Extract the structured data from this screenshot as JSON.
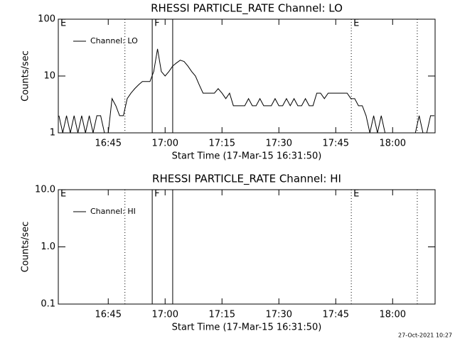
{
  "chart_data": [
    {
      "type": "line",
      "title": "RHESSI PARTICLE_RATE Channel: LO",
      "xlabel": "Start Time (17-Mar-15 16:31:50)",
      "ylabel": "Counts/sec",
      "log_y": true,
      "legend": "upper left",
      "color": "#000000",
      "xlim": [
        991.83,
        1091.2
      ],
      "xticks": [
        {
          "value": 1005,
          "label": "16:45"
        },
        {
          "value": 1020,
          "label": "17:00"
        },
        {
          "value": 1035,
          "label": "17:15"
        },
        {
          "value": 1050,
          "label": "17:30"
        },
        {
          "value": 1065,
          "label": "17:45"
        },
        {
          "value": 1080,
          "label": "18:00"
        }
      ],
      "ylim": [
        1,
        100
      ],
      "yticks": [
        1,
        10,
        100
      ],
      "markers": [
        {
          "x": 991.83,
          "style": "dotted",
          "label": "E"
        },
        {
          "x": 1009.4,
          "style": "dotted"
        },
        {
          "x": 1016.6,
          "style": "solid",
          "label": "F"
        },
        {
          "x": 1022.0,
          "style": "solid"
        },
        {
          "x": 1069.1,
          "style": "dotted",
          "label": "E"
        },
        {
          "x": 1086.5,
          "style": "dotted"
        }
      ],
      "x": [
        992,
        993,
        994,
        995,
        996,
        997,
        998,
        999,
        1000,
        1001,
        1002,
        1003,
        1004,
        1005,
        1006,
        1007,
        1008,
        1009,
        1010,
        1011,
        1012,
        1013,
        1014,
        1015,
        1016,
        1017,
        1018,
        1019,
        1020,
        1021,
        1022,
        1023,
        1024,
        1025,
        1026,
        1027,
        1028,
        1029,
        1030,
        1031,
        1032,
        1033,
        1034,
        1035,
        1036,
        1037,
        1038,
        1039,
        1040,
        1041,
        1042,
        1043,
        1044,
        1045,
        1046,
        1047,
        1048,
        1049,
        1050,
        1051,
        1052,
        1053,
        1054,
        1055,
        1056,
        1057,
        1058,
        1059,
        1060,
        1061,
        1062,
        1063,
        1064,
        1065,
        1066,
        1067,
        1068,
        1069,
        1070,
        1071,
        1072,
        1073,
        1074,
        1075,
        1076,
        1077,
        1078,
        1079,
        1080,
        1081,
        1082,
        1083,
        1084,
        1085,
        1086,
        1087,
        1088,
        1089,
        1090,
        1091
      ],
      "series": [
        {
          "name": "Channel: LO",
          "values": [
            2,
            1,
            2,
            1,
            2,
            1,
            2,
            1,
            2,
            1,
            2,
            2,
            1,
            1,
            4,
            3,
            2,
            2,
            4,
            5,
            6,
            7,
            8,
            8,
            8,
            12,
            30,
            12,
            10,
            12,
            15,
            17,
            19,
            18,
            15,
            12,
            10,
            7,
            5,
            5,
            5,
            5,
            6,
            5,
            4,
            5,
            3,
            3,
            3,
            3,
            4,
            3,
            3,
            4,
            3,
            3,
            3,
            4,
            3,
            3,
            4,
            3,
            4,
            3,
            3,
            4,
            3,
            3,
            5,
            5,
            4,
            5,
            5,
            5,
            5,
            5,
            5,
            4,
            4,
            3,
            3,
            2,
            1,
            2,
            1,
            2,
            1,
            1,
            1,
            1,
            1,
            1,
            1,
            1,
            1,
            2,
            1,
            1,
            2,
            2
          ]
        }
      ]
    },
    {
      "type": "line",
      "title": "RHESSI PARTICLE_RATE Channel: HI",
      "xlabel": "Start Time (17-Mar-15 16:31:50)",
      "ylabel": "Counts/sec",
      "log_y": true,
      "legend": "upper left",
      "color": "#000000",
      "xlim": [
        991.83,
        1091.2
      ],
      "xticks": [
        {
          "value": 1005,
          "label": "16:45"
        },
        {
          "value": 1020,
          "label": "17:00"
        },
        {
          "value": 1035,
          "label": "17:15"
        },
        {
          "value": 1050,
          "label": "17:30"
        },
        {
          "value": 1065,
          "label": "17:45"
        },
        {
          "value": 1080,
          "label": "18:00"
        }
      ],
      "ylim": [
        0.1,
        10
      ],
      "yticks": [
        {
          "value": 0.1,
          "label": "0.1"
        },
        {
          "value": 1,
          "label": "1.0"
        },
        {
          "value": 10,
          "label": "10.0"
        }
      ],
      "markers": [
        {
          "x": 991.83,
          "style": "dotted",
          "label": "E"
        },
        {
          "x": 1009.4,
          "style": "dotted"
        },
        {
          "x": 1016.6,
          "style": "solid",
          "label": "F"
        },
        {
          "x": 1022.0,
          "style": "solid"
        },
        {
          "x": 1069.1,
          "style": "dotted",
          "label": "E"
        },
        {
          "x": 1086.5,
          "style": "dotted"
        }
      ],
      "series": [
        {
          "name": "Channel: HI"
        }
      ]
    }
  ],
  "footer": "27-Oct-2021 10:27"
}
